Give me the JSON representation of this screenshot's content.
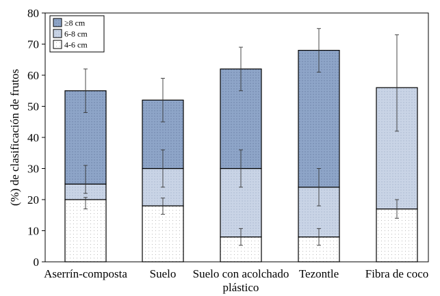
{
  "chart_data": {
    "type": "bar",
    "stacked": true,
    "title": "",
    "xlabel": "",
    "ylabel": "(%) de clasificación de frutos",
    "ylim": [
      0,
      80
    ],
    "yticks": [
      0,
      10,
      20,
      30,
      40,
      50,
      60,
      70,
      80
    ],
    "grid": false,
    "legend_position": "top-left",
    "categories": [
      [
        "Aserrín-composta"
      ],
      [
        "Suelo"
      ],
      [
        "Suelo con acolchado",
        "plástico"
      ],
      [
        "Tezontle"
      ],
      [
        "Fibra de coco"
      ]
    ],
    "series": [
      {
        "name": "4-6 cm",
        "fill": "#ffffff",
        "values": [
          20,
          18,
          8,
          8,
          17
        ],
        "error_hi": [
          0.7,
          2.5,
          2.7,
          2.7,
          3
        ],
        "error_lo": [
          3,
          2.7,
          2.7,
          2.7,
          3
        ]
      },
      {
        "name": "6-8 cm",
        "fill": "#c8d3e6",
        "values": [
          5,
          12,
          22,
          16,
          39
        ],
        "error_hi": [
          6,
          6,
          6,
          6,
          17
        ],
        "error_lo": [
          3,
          6,
          6,
          6,
          14
        ]
      },
      {
        "name": "≥8 cm",
        "fill": "#8fa6c8",
        "values": [
          30,
          22,
          32,
          44,
          0
        ],
        "error_hi": [
          7,
          7,
          7,
          7,
          6
        ],
        "error_lo": [
          7,
          7,
          7,
          7,
          6
        ]
      }
    ]
  }
}
